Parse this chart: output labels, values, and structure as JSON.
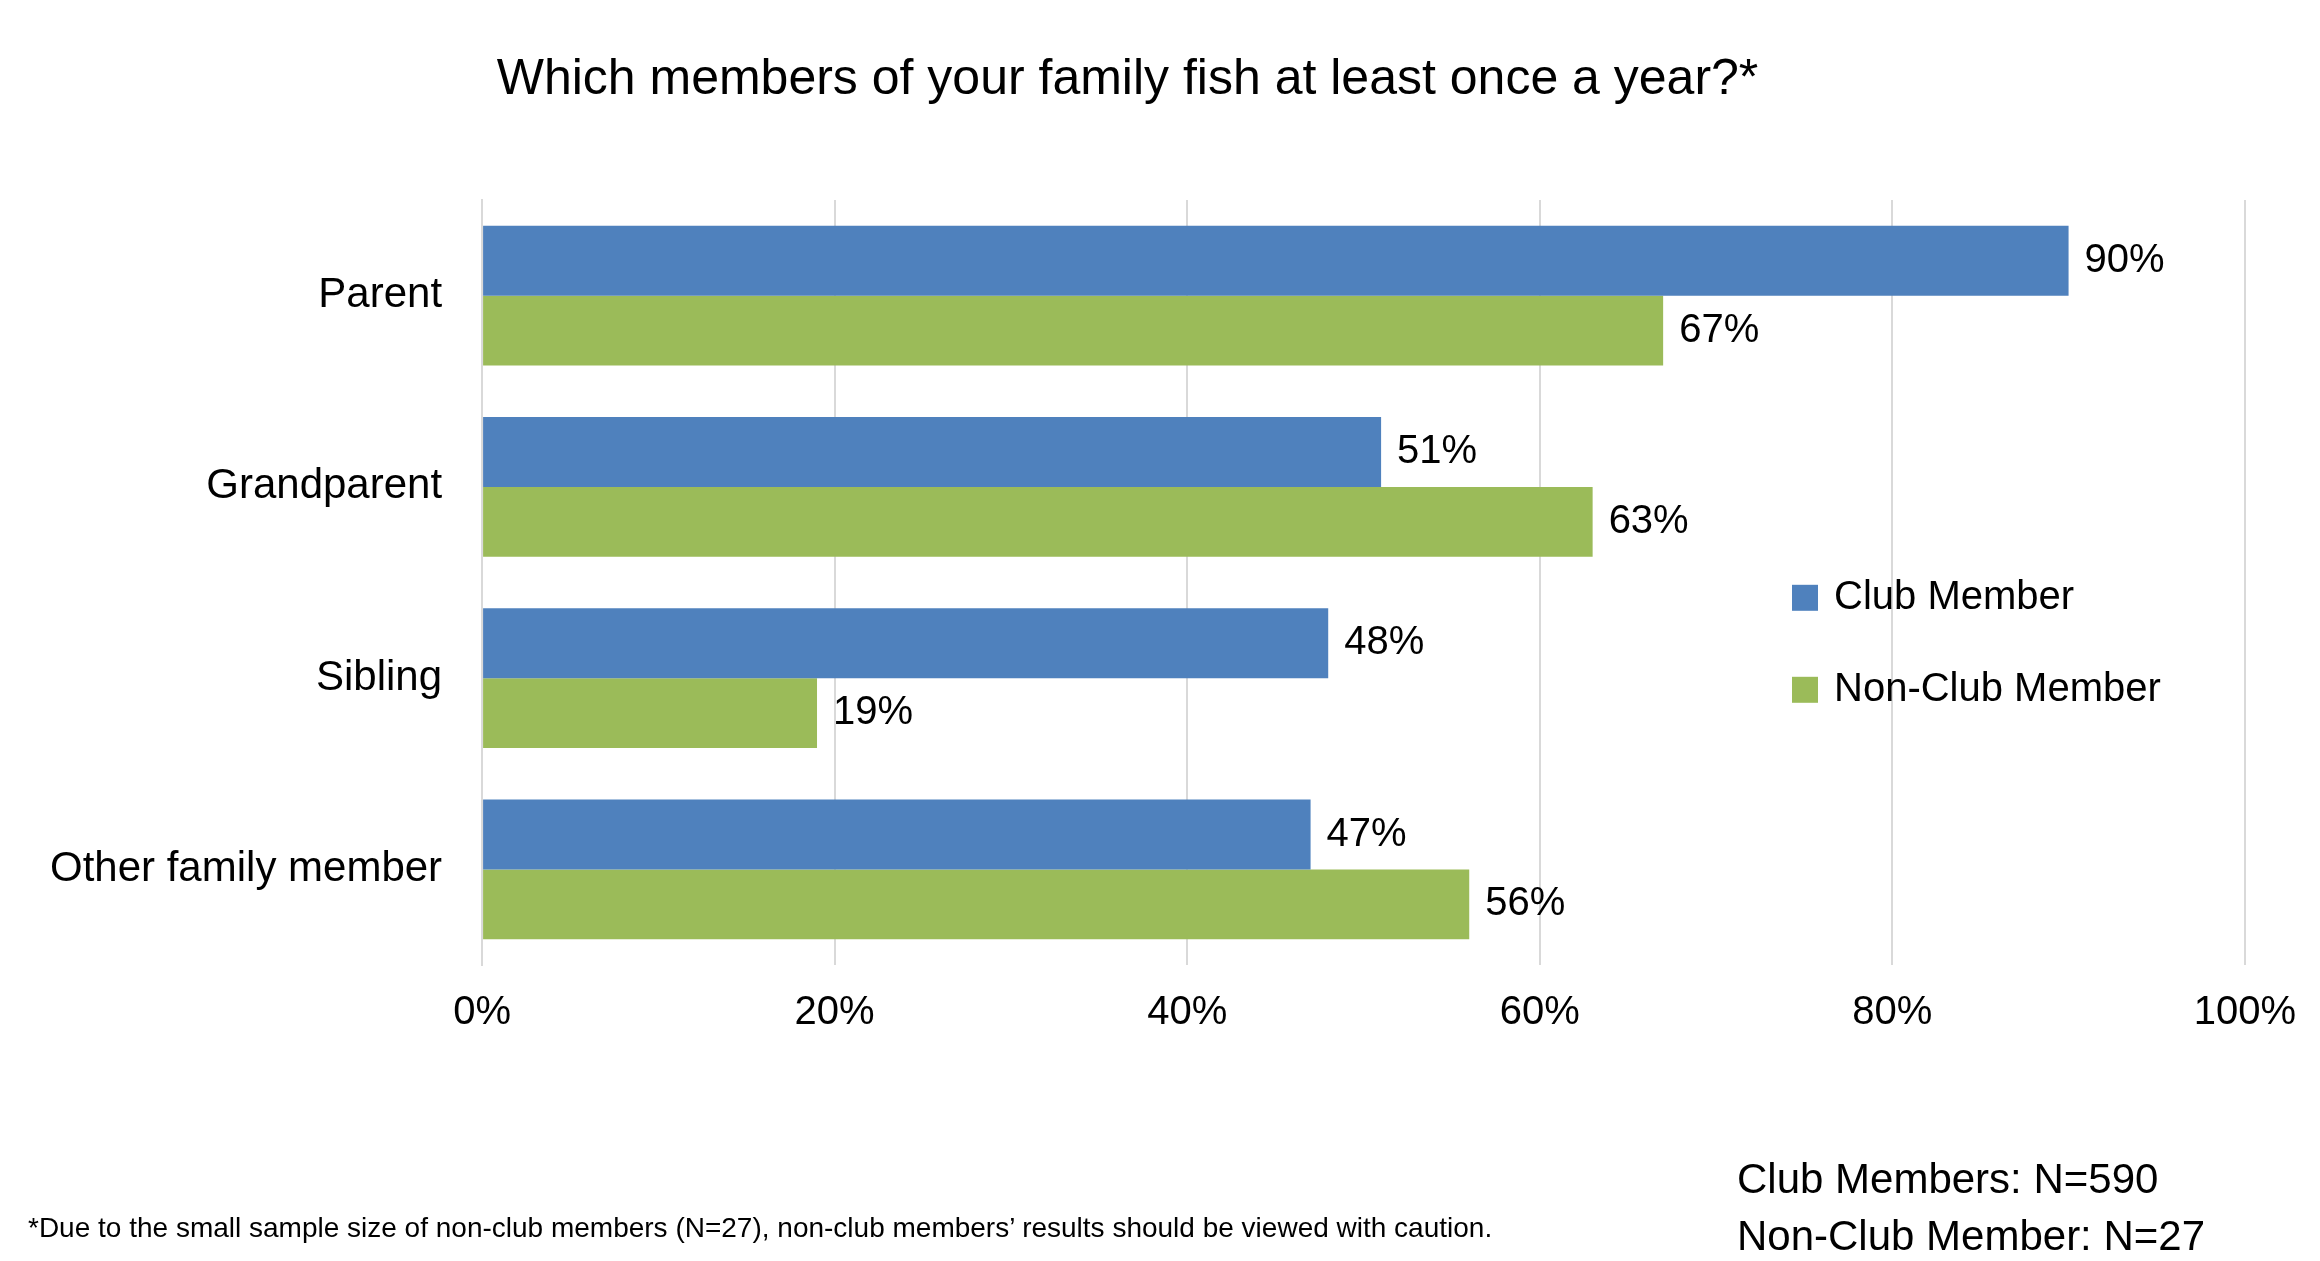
{
  "chart_data": {
    "type": "bar",
    "orientation": "horizontal",
    "title": "Which members of your family fish at least once a year?*",
    "categories": [
      "Parent",
      "Grandparent",
      "Sibling",
      "Other family member"
    ],
    "series": [
      {
        "name": "Club Member",
        "color": "#4f81bd",
        "values": [
          90,
          51,
          48,
          47
        ],
        "value_labels": [
          "90%",
          "51%",
          "48%",
          "47%"
        ]
      },
      {
        "name": "Non-Club Member",
        "color": "#9bbb59",
        "values": [
          67,
          63,
          19,
          56
        ],
        "value_labels": [
          "67%",
          "63%",
          "19%",
          "56%"
        ]
      }
    ],
    "xlim": [
      0,
      100
    ],
    "xticks": [
      {
        "value": 0,
        "label": "0%"
      },
      {
        "value": 20,
        "label": "20%"
      },
      {
        "value": 40,
        "label": "40%"
      },
      {
        "value": 60,
        "label": "60%"
      },
      {
        "value": 80,
        "label": "80%"
      },
      {
        "value": 100,
        "label": "100%"
      }
    ],
    "grid": "x",
    "legend": "right",
    "annotations": [
      "Club Members: N=590",
      "Non-Club Member: N=27",
      "*Due to the small sample size of non-club members (N=27), non-club members’ results should be viewed with caution."
    ]
  }
}
